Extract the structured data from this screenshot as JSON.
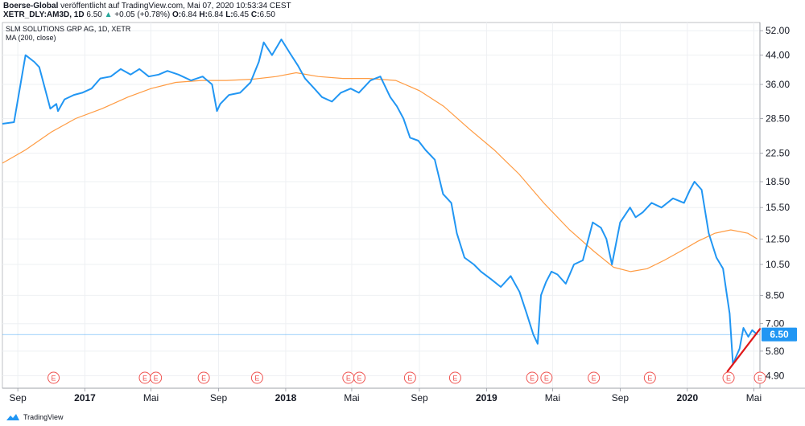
{
  "header": {
    "publisher": "Boerse-Global",
    "published_text": "veröffentlicht auf TradingView.com, Mai 07, 2020 10:53:34 CEST",
    "symbol": "XETR_DLY:AM3D, 1D",
    "last": "6.50",
    "change_arrow": "▲",
    "change": "+0.05 (+0.78%)",
    "o_label": "O:",
    "o_value": "6.84",
    "h_label": "H:",
    "h_value": "6.84",
    "l_label": "L:",
    "l_value": "6.45",
    "c_label": "C:",
    "c_value": "6.50"
  },
  "legend": {
    "title": "SLM SOLUTIONS GRP AG, 1D, XETR",
    "indicator": "MA (200, close)"
  },
  "footer": {
    "brand": "TradingView"
  },
  "colors": {
    "price_line": "#2196f3",
    "ma_line": "#ff9b42",
    "trend_line": "#e0181a",
    "last_price_bg": "#2196f3",
    "earnings_marker": "#ef5350",
    "grid": "#eef0f3"
  },
  "chart_data": {
    "type": "line",
    "title": "SLM SOLUTIONS GRP AG, 1D, XETR",
    "y_scale": "log",
    "ylim": [
      4.5,
      55
    ],
    "y_ticks": [
      "52.00",
      "44.00",
      "36.00",
      "28.50",
      "22.50",
      "18.50",
      "15.50",
      "12.50",
      "10.50",
      "8.50",
      "7.00",
      "5.80",
      "4.90"
    ],
    "x_ticks": [
      {
        "label": "Sep",
        "date": "2016-09-01",
        "bold": false
      },
      {
        "label": "2017",
        "date": "2017-01-01",
        "bold": true
      },
      {
        "label": "Mai",
        "date": "2017-05-01",
        "bold": false
      },
      {
        "label": "Sep",
        "date": "2017-09-01",
        "bold": false
      },
      {
        "label": "2018",
        "date": "2018-01-01",
        "bold": true
      },
      {
        "label": "Mai",
        "date": "2018-05-01",
        "bold": false
      },
      {
        "label": "Sep",
        "date": "2018-09-01",
        "bold": false
      },
      {
        "label": "2019",
        "date": "2019-01-01",
        "bold": true
      },
      {
        "label": "Mai",
        "date": "2019-05-01",
        "bold": false
      },
      {
        "label": "Sep",
        "date": "2019-09-01",
        "bold": false
      },
      {
        "label": "2020",
        "date": "2020-01-01",
        "bold": true
      },
      {
        "label": "Mai",
        "date": "2020-05-01",
        "bold": false
      }
    ],
    "x_range": [
      "2016-08-04",
      "2020-05-12"
    ],
    "last_price": 6.5,
    "last_price_label": "6.50",
    "series": [
      {
        "name": "SLM SOLUTIONS GRP AG",
        "dates": [
          "2016-08-04",
          "2016-08-25",
          "2016-09-15",
          "2016-10-01",
          "2016-10-10",
          "2016-10-30",
          "2016-11-10",
          "2016-11-13",
          "2016-11-25",
          "2016-12-12",
          "2016-12-27",
          "2017-01-13",
          "2017-01-29",
          "2017-02-17",
          "2017-03-07",
          "2017-03-25",
          "2017-04-10",
          "2017-04-27",
          "2017-05-15",
          "2017-05-31",
          "2017-06-20",
          "2017-07-13",
          "2017-08-03",
          "2017-08-20",
          "2017-08-29",
          "2017-09-04",
          "2017-09-20",
          "2017-10-10",
          "2017-10-29",
          "2017-11-13",
          "2017-11-22",
          "2017-12-07",
          "2017-12-24",
          "2018-01-09",
          "2018-01-23",
          "2018-02-05",
          "2018-02-22",
          "2018-03-08",
          "2018-03-26",
          "2018-04-11",
          "2018-04-29",
          "2018-05-14",
          "2018-06-04",
          "2018-06-22",
          "2018-07-10",
          "2018-07-22",
          "2018-08-03",
          "2018-08-15",
          "2018-08-30",
          "2018-09-12",
          "2018-09-29",
          "2018-10-14",
          "2018-10-29",
          "2018-11-08",
          "2018-11-22",
          "2018-12-09",
          "2018-12-22",
          "2019-01-09",
          "2019-01-27",
          "2019-02-14",
          "2019-03-02",
          "2019-03-15",
          "2019-03-27",
          "2019-04-04",
          "2019-04-10",
          "2019-04-19",
          "2019-04-29",
          "2019-05-10",
          "2019-05-25",
          "2019-06-09",
          "2019-06-25",
          "2019-07-13",
          "2019-07-28",
          "2019-08-07",
          "2019-08-17",
          "2019-09-01",
          "2019-09-19",
          "2019-09-29",
          "2019-10-12",
          "2019-10-28",
          "2019-11-15",
          "2019-12-06",
          "2019-12-26",
          "2020-01-06",
          "2020-01-14",
          "2020-01-27",
          "2020-02-09",
          "2020-02-23",
          "2020-03-06",
          "2020-03-13",
          "2020-03-18",
          "2020-03-24",
          "2020-03-30",
          "2020-04-05",
          "2020-04-12",
          "2020-04-21",
          "2020-04-28",
          "2020-05-07"
        ],
        "values": [
          27.5,
          27.8,
          44.0,
          42.0,
          40.5,
          30.5,
          31.5,
          30.0,
          32.5,
          33.5,
          34.0,
          35.0,
          37.5,
          38.0,
          40.0,
          38.5,
          40.0,
          38.0,
          38.5,
          39.5,
          38.5,
          37.0,
          38.0,
          36.0,
          30.0,
          31.5,
          33.5,
          34.0,
          36.5,
          42.0,
          48.0,
          44.0,
          49.0,
          44.5,
          41.0,
          37.5,
          35.0,
          33.0,
          32.0,
          34.0,
          35.0,
          34.0,
          37.0,
          38.0,
          33.0,
          31.0,
          28.5,
          25.0,
          24.5,
          23.0,
          21.5,
          17.0,
          16.0,
          13.0,
          11.0,
          10.5,
          10.0,
          9.5,
          9.0,
          9.7,
          8.7,
          7.5,
          6.5,
          6.1,
          8.5,
          9.3,
          10.0,
          9.8,
          9.2,
          10.5,
          10.8,
          14.0,
          13.5,
          12.5,
          10.5,
          14.0,
          15.5,
          14.5,
          15.0,
          16.0,
          15.5,
          16.5,
          16.0,
          17.5,
          18.5,
          17.5,
          13.0,
          11.0,
          10.2,
          8.5,
          7.5,
          5.3,
          5.6,
          5.9,
          6.8,
          6.4,
          6.7,
          6.5
        ]
      },
      {
        "name": "MA (200, close)",
        "dates": [
          "2016-08-04",
          "2016-09-15",
          "2016-11-01",
          "2016-12-15",
          "2017-02-01",
          "2017-03-20",
          "2017-05-01",
          "2017-06-15",
          "2017-08-01",
          "2017-09-15",
          "2017-11-01",
          "2017-12-15",
          "2018-01-20",
          "2018-03-01",
          "2018-04-15",
          "2018-06-01",
          "2018-07-20",
          "2018-09-01",
          "2018-10-15",
          "2018-12-01",
          "2019-01-15",
          "2019-03-01",
          "2019-04-15",
          "2019-06-01",
          "2019-07-15",
          "2019-08-20",
          "2019-09-20",
          "2019-10-20",
          "2019-11-20",
          "2019-12-20",
          "2020-01-20",
          "2020-02-20",
          "2020-03-20",
          "2020-04-20",
          "2020-05-07"
        ],
        "values": [
          21.0,
          23.0,
          26.0,
          28.5,
          30.5,
          33.0,
          35.0,
          36.5,
          37.0,
          37.0,
          37.3,
          38.0,
          39.0,
          38.0,
          37.5,
          37.5,
          37.0,
          34.5,
          31.0,
          26.5,
          23.0,
          19.5,
          16.0,
          13.3,
          11.5,
          10.3,
          10.0,
          10.2,
          10.8,
          11.5,
          12.3,
          13.0,
          13.3,
          13.0,
          12.5
        ]
      }
    ],
    "trend_line": {
      "from": {
        "date": "2020-03-14",
        "value": 5.05
      },
      "to": {
        "date": "2020-05-12",
        "value": 6.75
      }
    },
    "earnings_markers": {
      "label": "E",
      "dates": [
        "2016-11-05",
        "2017-04-20",
        "2017-05-10",
        "2017-08-05",
        "2017-11-10",
        "2018-04-25",
        "2018-05-15",
        "2018-08-15",
        "2018-11-05",
        "2019-03-25",
        "2019-04-20",
        "2019-07-15",
        "2019-10-25",
        "2020-03-16",
        "2020-05-12"
      ]
    }
  }
}
